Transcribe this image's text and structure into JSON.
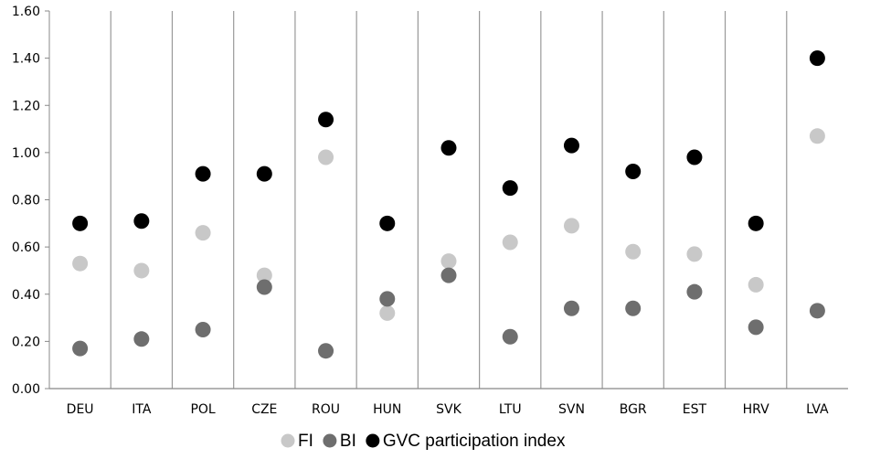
{
  "chart_data": {
    "type": "scatter",
    "categories": [
      "DEU",
      "ITA",
      "POL",
      "CZE",
      "ROU",
      "HUN",
      "SVK",
      "LTU",
      "SVN",
      "BGR",
      "EST",
      "HRV",
      "LVA"
    ],
    "series": [
      {
        "name": "FI",
        "color": "#c8c8c8",
        "values": [
          0.53,
          0.5,
          0.66,
          0.48,
          0.98,
          0.32,
          0.54,
          0.62,
          0.69,
          0.58,
          0.57,
          0.44,
          1.07
        ]
      },
      {
        "name": "BI",
        "color": "#6e6e6e",
        "values": [
          0.17,
          0.21,
          0.25,
          0.43,
          0.16,
          0.38,
          0.48,
          0.22,
          0.34,
          0.34,
          0.41,
          0.26,
          0.33
        ]
      },
      {
        "name": "GVC participation index",
        "color": "#000000",
        "values": [
          0.7,
          0.71,
          0.91,
          0.91,
          1.14,
          0.7,
          1.02,
          0.85,
          1.03,
          0.92,
          0.98,
          0.7,
          1.4
        ]
      }
    ],
    "ylim": [
      0,
      1.6
    ],
    "yticks": [
      "0.00",
      "0.20",
      "0.40",
      "0.60",
      "0.80",
      "1.00",
      "1.20",
      "1.40",
      "1.60"
    ],
    "grid": "vertical category separators",
    "legend_position": "bottom-center"
  }
}
